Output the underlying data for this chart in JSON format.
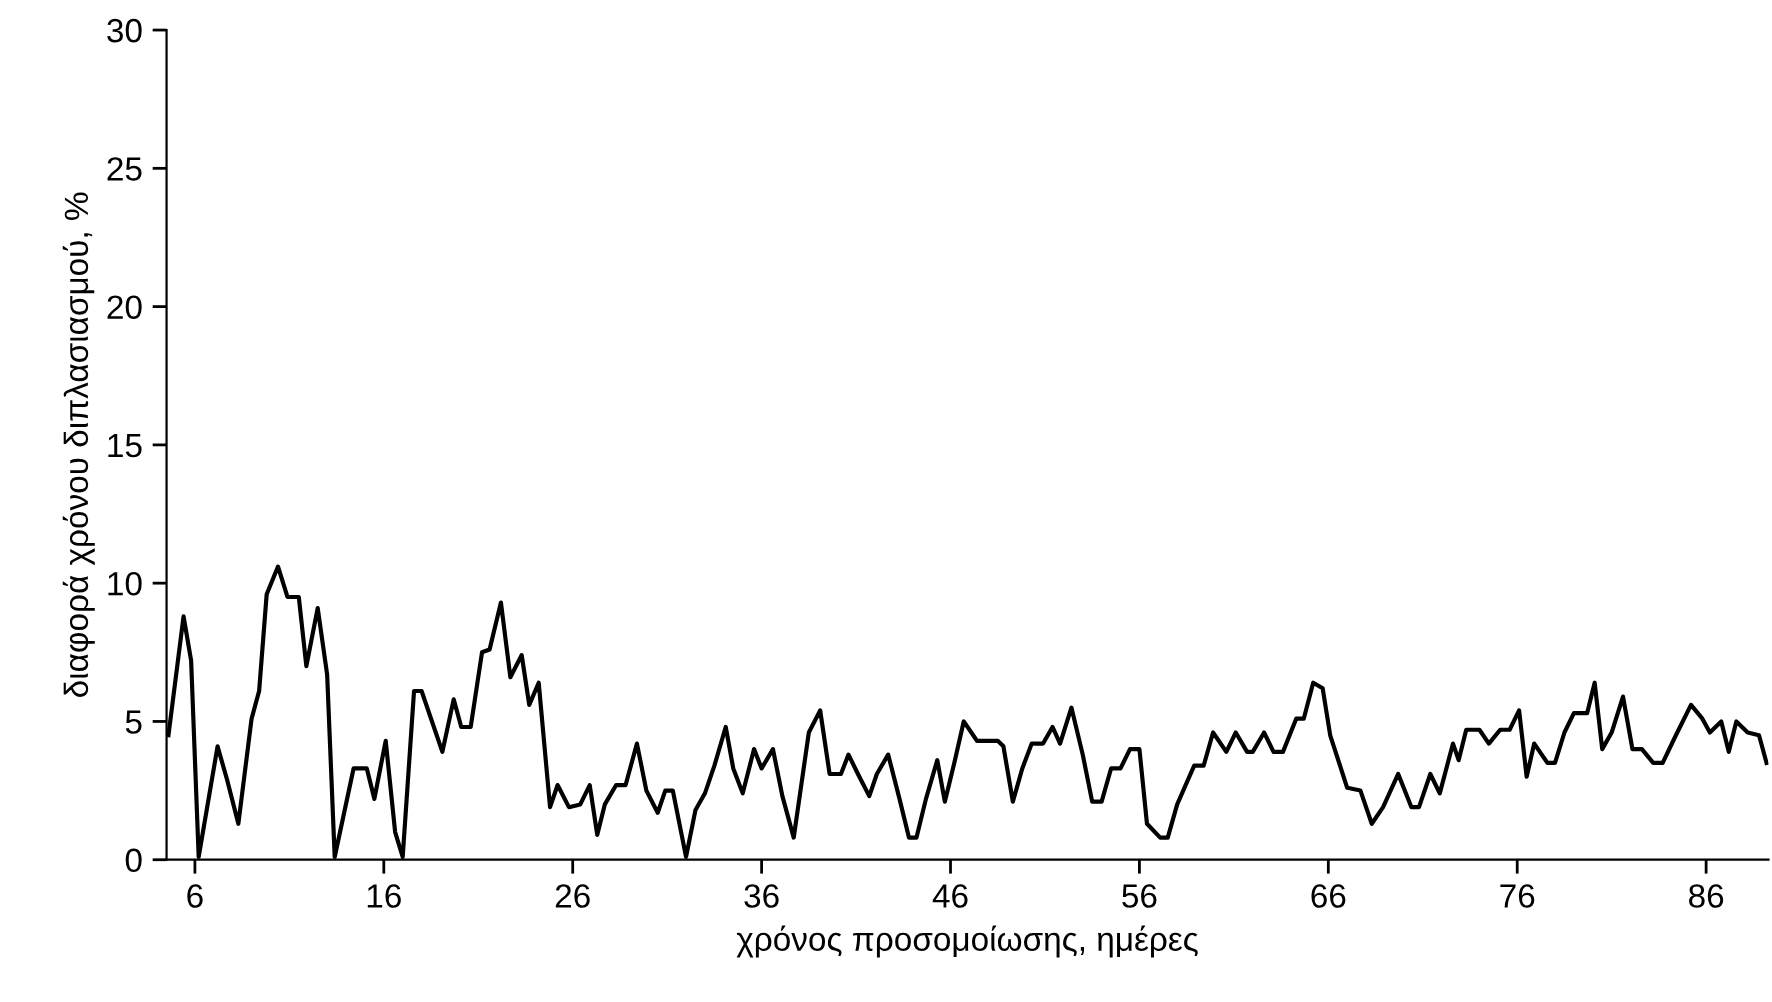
{
  "chart_data": {
    "type": "line",
    "xlabel": "χρόνος προσομοίωσης, ημέρες",
    "ylabel": "διαφορά χρόνου διπλασιασμού, %",
    "xlim": [
      4.5,
      89.3
    ],
    "xticks": [
      6,
      16,
      26,
      36,
      46,
      56,
      66,
      76,
      86
    ],
    "ylim": [
      0,
      30
    ],
    "yticks": [
      0,
      5,
      10,
      15,
      20,
      25,
      30
    ],
    "grid": false,
    "legend": false,
    "marker": "none",
    "line_style": "solid",
    "series": [
      {
        "color": "#000000",
        "x": [
          4.6,
          5.4,
          5.8,
          6.2,
          7.2,
          7.7,
          8.3,
          9.0,
          9.4,
          9.8,
          10.4,
          10.9,
          11.5,
          11.9,
          12.5,
          13.0,
          13.4,
          14.4,
          15.1,
          15.5,
          16.1,
          16.6,
          17.0,
          17.6,
          18.0,
          19.1,
          19.7,
          20.1,
          20.6,
          21.2,
          21.6,
          22.2,
          22.7,
          23.3,
          23.7,
          24.2,
          24.8,
          25.2,
          25.8,
          26.4,
          26.9,
          27.3,
          27.7,
          28.3,
          28.8,
          29.4,
          29.9,
          30.5,
          30.9,
          31.3,
          32.0,
          32.5,
          33.0,
          33.5,
          34.1,
          34.5,
          35.0,
          35.6,
          36.0,
          36.6,
          37.1,
          37.7,
          38.5,
          39.1,
          39.6,
          40.2,
          40.6,
          41.1,
          41.7,
          42.1,
          42.7,
          43.3,
          43.8,
          44.2,
          44.7,
          45.3,
          45.7,
          46.2,
          46.7,
          47.4,
          48.0,
          48.5,
          48.8,
          49.3,
          49.8,
          50.3,
          50.9,
          51.4,
          51.8,
          52.4,
          53.0,
          53.5,
          54.0,
          54.5,
          55.0,
          55.5,
          56.0,
          56.4,
          57.1,
          57.5,
          58.0,
          58.9,
          59.4,
          59.9,
          60.6,
          61.1,
          61.7,
          62.0,
          62.6,
          63.1,
          63.6,
          64.3,
          64.7,
          65.2,
          65.7,
          66.1,
          67.0,
          67.7,
          68.3,
          68.9,
          69.7,
          70.4,
          70.8,
          71.4,
          71.9,
          72.6,
          72.9,
          73.3,
          74.0,
          74.5,
          75.1,
          75.6,
          76.1,
          76.5,
          76.9,
          77.6,
          78.0,
          78.5,
          79.0,
          79.7,
          80.1,
          80.5,
          81.0,
          81.6,
          82.1,
          82.6,
          83.2,
          83.7,
          84.4,
          85.2,
          85.8,
          86.2,
          86.8,
          87.2,
          87.6,
          88.2,
          88.8,
          89.2
        ],
        "values": [
          4.5,
          8.8,
          7.2,
          0.1,
          4.1,
          2.9,
          1.3,
          5.1,
          6.1,
          9.6,
          10.6,
          9.5,
          9.5,
          7.0,
          9.1,
          6.7,
          0.1,
          3.3,
          3.3,
          2.2,
          4.3,
          1.0,
          0.1,
          6.1,
          6.1,
          3.9,
          5.8,
          4.8,
          4.8,
          7.5,
          7.6,
          9.3,
          6.6,
          7.4,
          5.6,
          6.4,
          1.9,
          2.7,
          1.9,
          2.0,
          2.7,
          0.9,
          2.0,
          2.7,
          2.7,
          4.2,
          2.5,
          1.7,
          2.5,
          2.5,
          0.1,
          1.8,
          2.4,
          3.4,
          4.8,
          3.3,
          2.4,
          4.0,
          3.3,
          4.0,
          2.3,
          0.8,
          4.6,
          5.4,
          3.1,
          3.1,
          3.8,
          3.1,
          2.3,
          3.1,
          3.8,
          2.2,
          0.8,
          0.8,
          2.2,
          3.6,
          2.1,
          3.5,
          5.0,
          4.3,
          4.3,
          4.3,
          4.1,
          2.1,
          3.3,
          4.2,
          4.2,
          4.8,
          4.2,
          5.5,
          3.8,
          2.1,
          2.1,
          3.3,
          3.3,
          4.0,
          4.0,
          1.3,
          0.8,
          0.8,
          2.0,
          3.4,
          3.4,
          4.6,
          3.9,
          4.6,
          3.9,
          3.9,
          4.6,
          3.9,
          3.9,
          5.1,
          5.1,
          6.4,
          6.2,
          4.5,
          2.6,
          2.5,
          1.3,
          1.9,
          3.1,
          1.9,
          1.9,
          3.1,
          2.4,
          4.2,
          3.6,
          4.7,
          4.7,
          4.2,
          4.7,
          4.7,
          5.4,
          3.0,
          4.2,
          3.5,
          3.5,
          4.6,
          5.3,
          5.3,
          6.4,
          4.0,
          4.6,
          5.9,
          4.0,
          4.0,
          3.5,
          3.5,
          4.5,
          5.6,
          5.1,
          4.6,
          5.0,
          3.9,
          5.0,
          4.6,
          4.5,
          3.5
        ]
      }
    ]
  }
}
